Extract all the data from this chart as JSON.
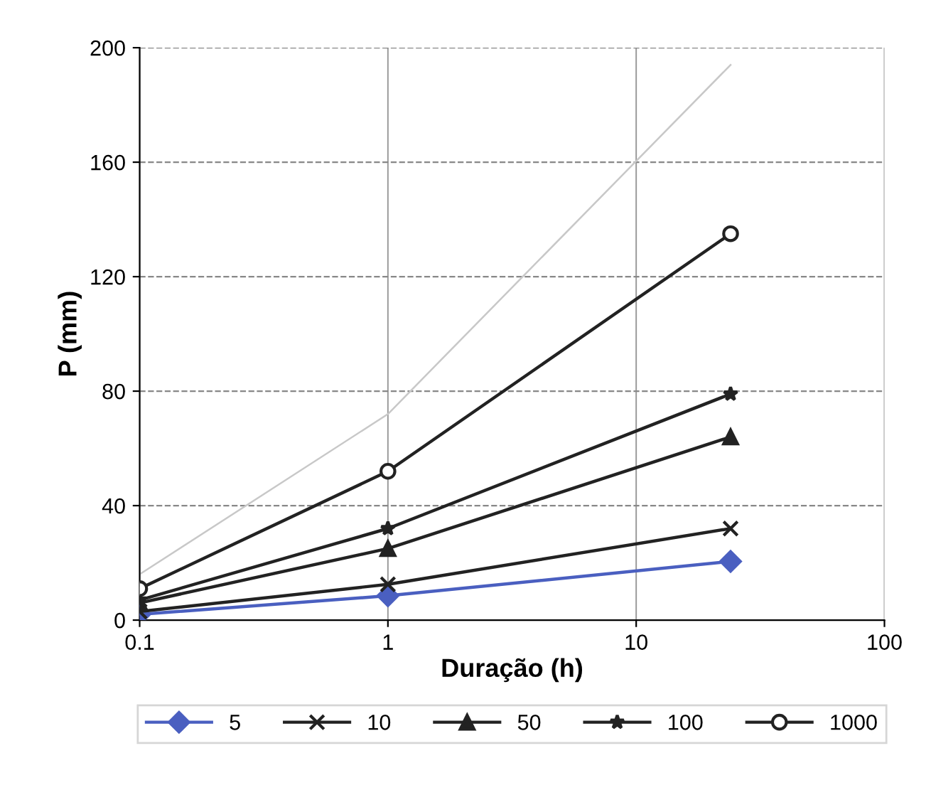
{
  "chart_data": {
    "type": "line",
    "xlabel": "Duração (h)",
    "ylabel": "P (mm)",
    "log": "x",
    "xlim": [
      0.1,
      100
    ],
    "xticks": [
      0.1,
      1,
      10,
      100
    ],
    "ylim": [
      0,
      200
    ],
    "yticks": [
      0,
      40,
      80,
      120,
      160,
      200
    ],
    "grid": true,
    "legend": "bottom",
    "line_style": "solid",
    "x": [
      0.1,
      1,
      24
    ],
    "series": [
      {
        "name": "5",
        "color": "#4a5fc0",
        "marker": "diamond",
        "values": [
          2,
          8.5,
          20.5
        ]
      },
      {
        "name": "10",
        "color": "#222222",
        "marker": "cross",
        "values": [
          3,
          12.5,
          32
        ]
      },
      {
        "name": "50",
        "color": "#222222",
        "marker": "triangle",
        "values": [
          6,
          25,
          64
        ]
      },
      {
        "name": "100",
        "color": "#222222",
        "marker": "star",
        "values": [
          7,
          32,
          79
        ]
      },
      {
        "name": "1000",
        "color": "#222222",
        "marker": "circle",
        "values": [
          11,
          52,
          135
        ]
      },
      {
        "color": "#c8c8c8",
        "marker": "none",
        "values": [
          16,
          72,
          194
        ]
      }
    ]
  }
}
